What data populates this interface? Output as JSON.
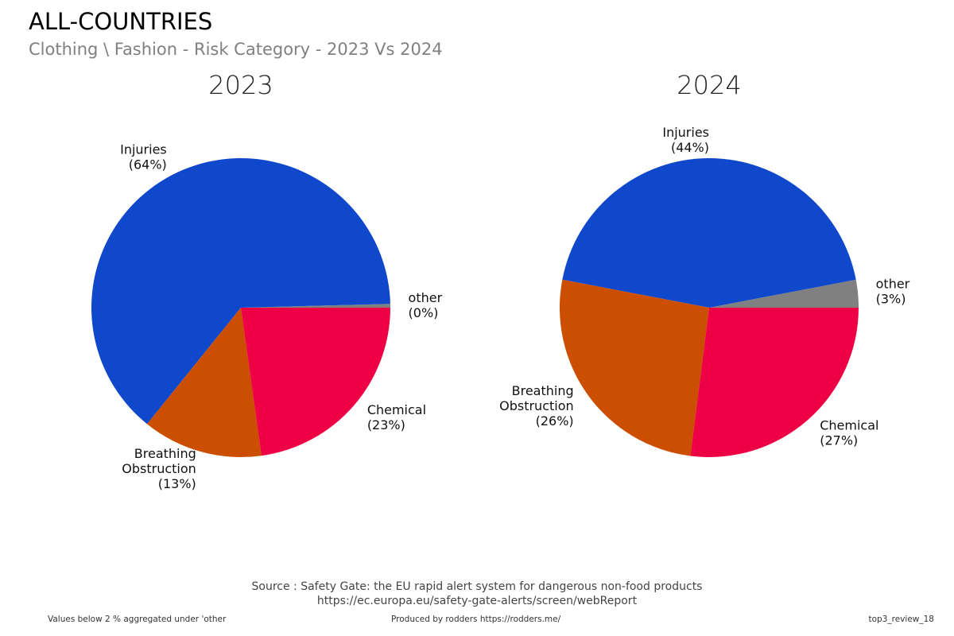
{
  "header": {
    "title": "ALL-COUNTRIES",
    "subtitle": "Clothing \\ Fashion - Risk Category - 2023 Vs 2024"
  },
  "chart_data": [
    {
      "type": "pie",
      "title": "2023",
      "start_angle_deg": 0,
      "direction": "counterclockwise",
      "slices": [
        {
          "label": "other",
          "value": 0.4,
          "display": "(0%)",
          "color": "#808080"
        },
        {
          "label": "Injuries",
          "value": 63.8,
          "display": "(64%)",
          "color": "#1048CC"
        },
        {
          "label": "Breathing Obstruction",
          "value": 13.0,
          "display": "(13%)",
          "color": "#CC4E00"
        },
        {
          "label": "Chemical",
          "value": 22.8,
          "display": "(23%)",
          "color": "#EE0044"
        }
      ]
    },
    {
      "type": "pie",
      "title": "2024",
      "start_angle_deg": 0,
      "direction": "counterclockwise",
      "slices": [
        {
          "label": "other",
          "value": 3,
          "display": "(3%)",
          "color": "#808080"
        },
        {
          "label": "Injuries",
          "value": 44,
          "display": "(44%)",
          "color": "#1048CC"
        },
        {
          "label": "Breathing Obstruction",
          "value": 26,
          "display": "(26%)",
          "color": "#CC4E00"
        },
        {
          "label": "Chemical",
          "value": 27,
          "display": "(27%)",
          "color": "#EE0044"
        }
      ]
    }
  ],
  "footer": {
    "source_line1": "Source : Safety Gate: the EU rapid alert system for dangerous non-food products",
    "source_line2": "https://ec.europa.eu/safety-gate-alerts/screen/webReport",
    "note": "Values below 2 % aggregated under 'other",
    "produced_by": "Produced by rodders https://rodders.me/",
    "id": "top3_review_18"
  }
}
